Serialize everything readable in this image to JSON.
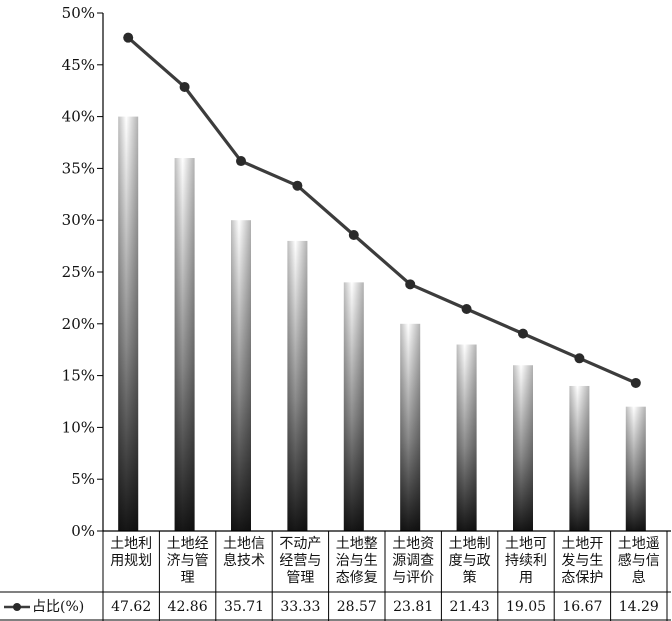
{
  "chart_data": {
    "type": "bar",
    "categories": [
      "土地利用规划",
      "土地经济与管理",
      "土地信息技术",
      "不动产经营与管理",
      "土地整治与生态修复",
      "土地资源调查与评价",
      "土地制度与政策",
      "土地可持续利用",
      "土地开发与生态保护",
      "土地遥感与信息"
    ],
    "bar_values": [
      40,
      36,
      30,
      28,
      24,
      20,
      18,
      16,
      14,
      12
    ],
    "series": [
      {
        "name": "占比(%)",
        "type": "line",
        "values": [
          47.62,
          42.86,
          35.71,
          33.33,
          28.57,
          23.81,
          21.43,
          19.05,
          16.67,
          14.29
        ]
      }
    ],
    "value_labels": [
      "47.62",
      "42.86",
      "35.71",
      "33.33",
      "28.57",
      "23.81",
      "21.43",
      "19.05",
      "16.67",
      "14.29"
    ],
    "y_ticks": [
      "0%",
      "5%",
      "10%",
      "15%",
      "20%",
      "25%",
      "30%",
      "35%",
      "40%",
      "45%",
      "50%"
    ],
    "ylim": [
      0,
      50
    ],
    "legend": "占比(%)",
    "colors": {
      "line": "#3c3c3c",
      "bar_dark": "#1a1a1a",
      "bar_light": "#ffffff",
      "axis": "#000000"
    }
  }
}
